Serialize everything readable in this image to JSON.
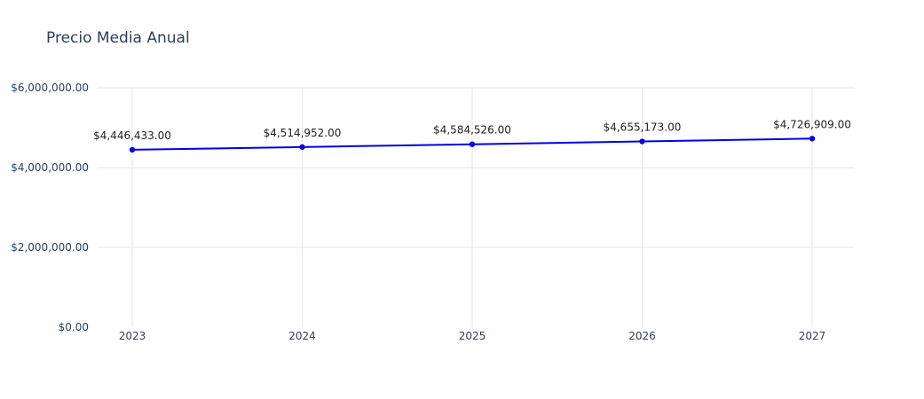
{
  "chart_data": {
    "type": "line",
    "title": "Precio Media Anual",
    "x": [
      "2023",
      "2024",
      "2025",
      "2026",
      "2027"
    ],
    "series": [
      {
        "values": [
          4446433,
          4514952,
          4584526,
          4655173,
          4726909
        ],
        "labels": [
          "$4,446,433.00",
          "$4,514,952.00",
          "$4,584,526.00",
          "$4,655,173.00",
          "$4,726,909.00"
        ],
        "color": "#0000ee"
      }
    ],
    "y_ticks": [
      {
        "value": 0,
        "label": "$0.00"
      },
      {
        "value": 2000000,
        "label": "$2,000,000.00"
      },
      {
        "value": 4000000,
        "label": "$4,000,000.00"
      },
      {
        "value": 6000000,
        "label": "$6,000,000.00"
      }
    ],
    "ylim": [
      0,
      6000000
    ],
    "grid": true,
    "legend": false,
    "colors": {
      "grid": "#e6e6e6",
      "tick_text": "#2a3f5f",
      "label_text": "#1f1f1f"
    }
  }
}
